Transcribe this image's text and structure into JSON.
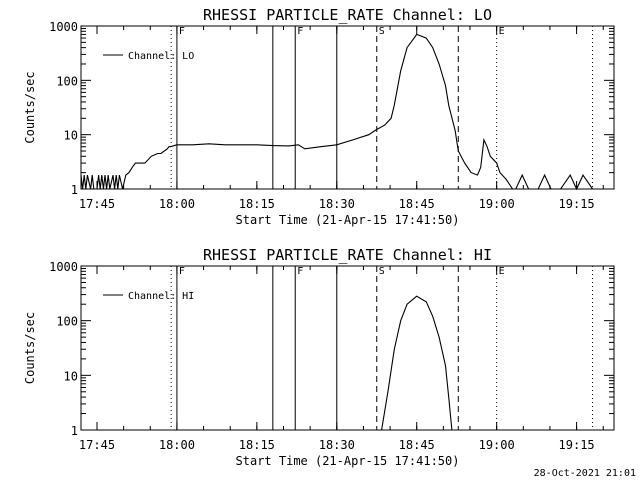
{
  "footer_timestamp": "28-Oct-2021 21:01",
  "chart_data": [
    {
      "type": "line",
      "title": "RHESSI PARTICLE_RATE Channel: LO",
      "xlabel": "Start Time (21-Apr-15 17:41:50)",
      "ylabel": "Counts/sec",
      "y_scale": "log",
      "xlim": [
        17.7,
        19.367
      ],
      "ylim": [
        1,
        1000
      ],
      "x_ticks": [
        17.75,
        18.0,
        18.25,
        18.5,
        18.75,
        19.0,
        19.25
      ],
      "x_tick_labels": [
        "17:45",
        "18:00",
        "18:15",
        "18:30",
        "18:45",
        "19:00",
        "19:15"
      ],
      "y_ticks": [
        1,
        10,
        100,
        1000
      ],
      "y_tick_labels": [
        "1",
        "10",
        "100",
        "1000"
      ],
      "legend": {
        "placement": "top-left",
        "entries": [
          "Channel: LO"
        ]
      },
      "series": [
        {
          "name": "Channel: LO",
          "x": [
            17.7,
            17.705,
            17.71,
            17.715,
            17.72,
            17.73,
            17.735,
            17.74,
            17.75,
            17.755,
            17.76,
            17.765,
            17.77,
            17.775,
            17.78,
            17.785,
            17.79,
            17.8,
            17.805,
            17.81,
            17.815,
            17.82,
            17.83,
            17.84,
            17.85,
            17.86,
            17.87,
            17.88,
            17.9,
            17.92,
            17.94,
            17.95,
            17.97,
            17.975,
            17.98,
            18.0,
            18.05,
            18.1,
            18.15,
            18.2,
            18.25,
            18.3,
            18.35,
            18.38,
            18.4,
            18.45,
            18.5,
            18.55,
            18.6,
            18.62,
            18.65,
            18.67,
            18.68,
            18.7,
            18.72,
            18.75,
            18.78,
            18.8,
            18.82,
            18.84,
            18.85,
            18.87,
            18.88,
            18.9,
            18.92,
            18.94,
            18.95,
            18.96,
            18.97,
            18.98,
            19.0,
            19.01,
            19.03,
            19.05,
            19.06,
            19.08,
            19.1,
            19.13,
            19.15,
            19.17,
            19.2,
            19.23,
            19.25,
            19.27,
            19.3
          ],
          "y": [
            1.8,
            1.0,
            1.8,
            1.0,
            1.8,
            1.0,
            1.8,
            1.0,
            1.0,
            1.8,
            1.0,
            1.8,
            1.0,
            1.8,
            1.0,
            1.8,
            1.0,
            1.8,
            1.0,
            1.8,
            1.0,
            1.8,
            1.0,
            1.8,
            2.0,
            2.5,
            3.0,
            3.0,
            3.0,
            4.0,
            4.5,
            4.5,
            5.5,
            6.0,
            6.0,
            6.5,
            6.5,
            6.8,
            6.5,
            6.5,
            6.5,
            6.3,
            6.2,
            6.5,
            5.5,
            6.0,
            6.5,
            8.0,
            10.0,
            12.0,
            15.0,
            20.0,
            35.0,
            150.0,
            400.0,
            700.0,
            600.0,
            400.0,
            200.0,
            80.0,
            35.0,
            12.0,
            5.0,
            3.0,
            2.0,
            1.8,
            2.5,
            8.0,
            6.0,
            4.0,
            3.0,
            2.0,
            1.5,
            1.0,
            1.0,
            1.8,
            1.0,
            1.0,
            1.8,
            1.0,
            1.0,
            1.8,
            1.0,
            1.8,
            1.0
          ]
        }
      ],
      "vertical_lines": [
        {
          "x": 17.982,
          "style": "dotted",
          "label": ""
        },
        {
          "x": 18.0,
          "style": "solid",
          "label": "F"
        },
        {
          "x": 18.3,
          "style": "solid",
          "label": ""
        },
        {
          "x": 18.37,
          "style": "solid",
          "label": "F"
        },
        {
          "x": 18.5,
          "style": "solid",
          "label": ""
        },
        {
          "x": 18.625,
          "style": "dashed",
          "label": "S"
        },
        {
          "x": 18.88,
          "style": "dashed",
          "label": ""
        },
        {
          "x": 19.0,
          "style": "dotted",
          "label": "E"
        },
        {
          "x": 19.3,
          "style": "dotted",
          "label": ""
        }
      ]
    },
    {
      "type": "line",
      "title": "RHESSI PARTICLE_RATE Channel: HI",
      "xlabel": "Start Time (21-Apr-15 17:41:50)",
      "ylabel": "Counts/sec",
      "y_scale": "log",
      "xlim": [
        17.7,
        19.367
      ],
      "ylim": [
        1,
        1000
      ],
      "x_ticks": [
        17.75,
        18.0,
        18.25,
        18.5,
        18.75,
        19.0,
        19.25
      ],
      "x_tick_labels": [
        "17:45",
        "18:00",
        "18:15",
        "18:30",
        "18:45",
        "19:00",
        "19:15"
      ],
      "y_ticks": [
        1,
        10,
        100,
        1000
      ],
      "y_tick_labels": [
        "1",
        "10",
        "100",
        "1000"
      ],
      "legend": {
        "placement": "top-left",
        "entries": [
          "Channel: HI"
        ]
      },
      "series": [
        {
          "name": "Channel: HI",
          "x": [
            18.64,
            18.66,
            18.68,
            18.7,
            18.72,
            18.75,
            18.78,
            18.8,
            18.82,
            18.84,
            18.85,
            18.86
          ],
          "y": [
            1.0,
            5.0,
            30.0,
            100.0,
            200.0,
            280.0,
            220.0,
            120.0,
            50.0,
            15.0,
            4.0,
            1.0
          ]
        }
      ],
      "vertical_lines": [
        {
          "x": 17.982,
          "style": "dotted",
          "label": ""
        },
        {
          "x": 18.0,
          "style": "solid",
          "label": "F"
        },
        {
          "x": 18.3,
          "style": "solid",
          "label": ""
        },
        {
          "x": 18.37,
          "style": "solid",
          "label": "F"
        },
        {
          "x": 18.5,
          "style": "solid",
          "label": ""
        },
        {
          "x": 18.625,
          "style": "dashed",
          "label": "S"
        },
        {
          "x": 18.88,
          "style": "dashed",
          "label": ""
        },
        {
          "x": 19.0,
          "style": "dotted",
          "label": "E"
        },
        {
          "x": 19.3,
          "style": "dotted",
          "label": ""
        }
      ]
    }
  ]
}
